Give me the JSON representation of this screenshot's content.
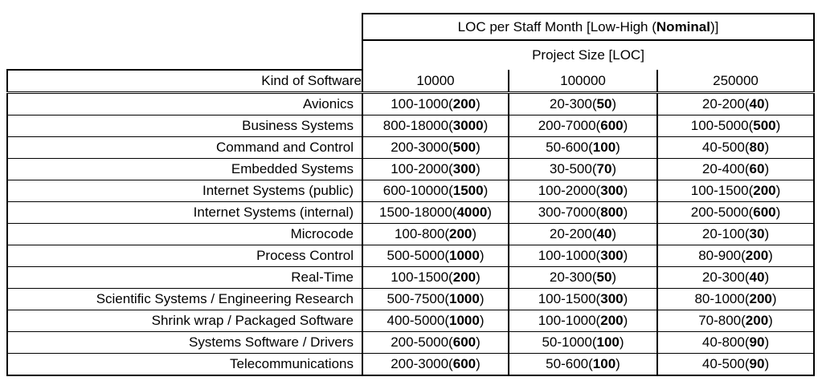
{
  "table": {
    "header": {
      "title_prefix": "LOC per Staff Month [Low-High (",
      "title_bold": "Nominal",
      "title_suffix": ")]",
      "subtitle": "Project Size [LOC]",
      "kind_header": "Kind of Software",
      "size_columns": [
        "10000",
        "100000",
        "250000"
      ]
    },
    "rows": [
      {
        "kind": "Avionics",
        "values": [
          {
            "range": "100-1000",
            "nominal": "200"
          },
          {
            "range": "20-300",
            "nominal": "50"
          },
          {
            "range": "20-200",
            "nominal": "40"
          }
        ]
      },
      {
        "kind": "Business Systems",
        "values": [
          {
            "range": "800-18000",
            "nominal": "3000"
          },
          {
            "range": "200-7000",
            "nominal": "600"
          },
          {
            "range": "100-5000",
            "nominal": "500"
          }
        ]
      },
      {
        "kind": "Command and Control",
        "values": [
          {
            "range": "200-3000",
            "nominal": "500"
          },
          {
            "range": "50-600",
            "nominal": "100"
          },
          {
            "range": "40-500",
            "nominal": "80"
          }
        ]
      },
      {
        "kind": "Embedded Systems",
        "values": [
          {
            "range": "100-2000",
            "nominal": "300"
          },
          {
            "range": "30-500",
            "nominal": "70"
          },
          {
            "range": "20-400",
            "nominal": "60"
          }
        ]
      },
      {
        "kind": "Internet Systems (public)",
        "values": [
          {
            "range": "600-10000",
            "nominal": "1500"
          },
          {
            "range": "100-2000",
            "nominal": "300"
          },
          {
            "range": "100-1500",
            "nominal": "200"
          }
        ]
      },
      {
        "kind": "Internet Systems (internal)",
        "values": [
          {
            "range": "1500-18000",
            "nominal": "4000"
          },
          {
            "range": "300-7000",
            "nominal": "800"
          },
          {
            "range": "200-5000",
            "nominal": "600"
          }
        ]
      },
      {
        "kind": "Microcode",
        "values": [
          {
            "range": "100-800",
            "nominal": "200"
          },
          {
            "range": "20-200",
            "nominal": "40"
          },
          {
            "range": "20-100",
            "nominal": "30"
          }
        ]
      },
      {
        "kind": "Process Control",
        "values": [
          {
            "range": "500-5000",
            "nominal": "1000"
          },
          {
            "range": "100-1000",
            "nominal": "300"
          },
          {
            "range": "80-900",
            "nominal": "200"
          }
        ]
      },
      {
        "kind": "Real-Time",
        "values": [
          {
            "range": "100-1500",
            "nominal": "200"
          },
          {
            "range": "20-300",
            "nominal": "50"
          },
          {
            "range": "20-300",
            "nominal": "40"
          }
        ]
      },
      {
        "kind": "Scientific Systems / Engineering Research",
        "values": [
          {
            "range": "500-7500",
            "nominal": "1000"
          },
          {
            "range": "100-1500",
            "nominal": "300"
          },
          {
            "range": "80-1000",
            "nominal": "200"
          }
        ]
      },
      {
        "kind": "Shrink wrap / Packaged Software",
        "values": [
          {
            "range": "400-5000",
            "nominal": "1000"
          },
          {
            "range": "100-1000",
            "nominal": "200"
          },
          {
            "range": "70-800",
            "nominal": "200"
          }
        ]
      },
      {
        "kind": "Systems Software / Drivers",
        "values": [
          {
            "range": "200-5000",
            "nominal": "600"
          },
          {
            "range": "50-1000",
            "nominal": "100"
          },
          {
            "range": "40-800",
            "nominal": "90"
          }
        ]
      },
      {
        "kind": "Telecommunications",
        "values": [
          {
            "range": "200-3000",
            "nominal": "600"
          },
          {
            "range": "50-600",
            "nominal": "100"
          },
          {
            "range": "40-500",
            "nominal": "90"
          }
        ]
      }
    ]
  },
  "colors": {
    "border": "#000000",
    "background": "#ffffff",
    "text": "#000000"
  }
}
